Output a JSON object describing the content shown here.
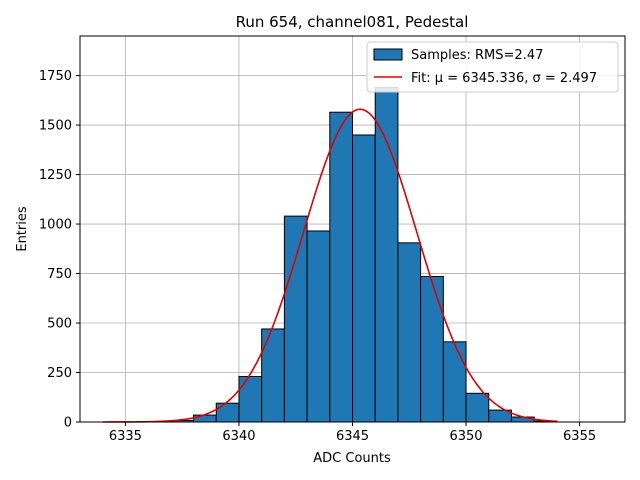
{
  "chart_data": {
    "type": "bar",
    "title": "Run 654, channel081, Pedestal",
    "xlabel": "ADC Counts",
    "ylabel": "Entries",
    "xlim": [
      6333,
      6357
    ],
    "ylim": [
      0,
      1950
    ],
    "xticks": [
      6335,
      6340,
      6345,
      6350,
      6355
    ],
    "yticks": [
      0,
      250,
      500,
      750,
      1000,
      1250,
      1500,
      1750
    ],
    "grid": true,
    "legend_position": "top-right",
    "bar_color": "#1f77b4",
    "fit_color": "#e00000",
    "series": [
      {
        "name": "Samples: RMS=2.47",
        "type": "histogram",
        "bins": [
          {
            "start": 6337,
            "end": 6338,
            "value": 8
          },
          {
            "start": 6338,
            "end": 6339,
            "value": 35
          },
          {
            "start": 6339,
            "end": 6340,
            "value": 95
          },
          {
            "start": 6340,
            "end": 6341,
            "value": 230
          },
          {
            "start": 6341,
            "end": 6342,
            "value": 470
          },
          {
            "start": 6342,
            "end": 6343,
            "value": 1040
          },
          {
            "start": 6343,
            "end": 6344,
            "value": 965
          },
          {
            "start": 6344,
            "end": 6345,
            "value": 1565
          },
          {
            "start": 6345,
            "end": 6346,
            "value": 1450
          },
          {
            "start": 6346,
            "end": 6347,
            "value": 1690
          },
          {
            "start": 6347,
            "end": 6348,
            "value": 905
          },
          {
            "start": 6348,
            "end": 6349,
            "value": 735
          },
          {
            "start": 6349,
            "end": 6350,
            "value": 405
          },
          {
            "start": 6350,
            "end": 6351,
            "value": 145
          },
          {
            "start": 6351,
            "end": 6352,
            "value": 60
          },
          {
            "start": 6352,
            "end": 6353,
            "value": 25
          },
          {
            "start": 6353,
            "end": 6354,
            "value": 5
          }
        ]
      },
      {
        "name": "Fit: μ = 6345.336, σ = 2.497",
        "type": "line",
        "model": "gaussian",
        "mu": 6345.336,
        "sigma": 2.497,
        "peak": 1580,
        "x_range": [
          6334,
          6354
        ]
      }
    ]
  }
}
